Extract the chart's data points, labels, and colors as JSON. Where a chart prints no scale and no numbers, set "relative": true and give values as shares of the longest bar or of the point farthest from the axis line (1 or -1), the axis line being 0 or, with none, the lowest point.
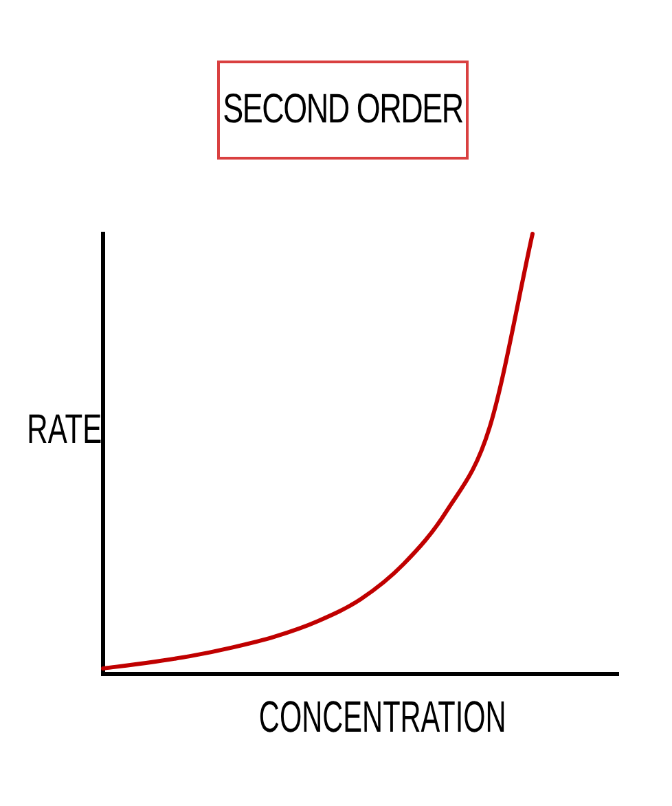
{
  "chart_data": {
    "type": "line",
    "title": "SECOND ORDER",
    "xlabel": "CONCENTRATION",
    "ylabel": "RATE",
    "relative": true,
    "grid": false,
    "legend": false,
    "marker": "none",
    "line_style": "solid",
    "categories": [
      null,
      null,
      null,
      null,
      null,
      null,
      null,
      null,
      null,
      null,
      null,
      null,
      null
    ],
    "series": [
      {
        "color": "#c00000",
        "values": [
          0.0125,
          0.025,
          0.04,
          0.06,
          0.085,
          0.12,
          0.17,
          0.25,
          0.37,
          0.56,
          1.0,
          null,
          null
        ]
      }
    ]
  }
}
